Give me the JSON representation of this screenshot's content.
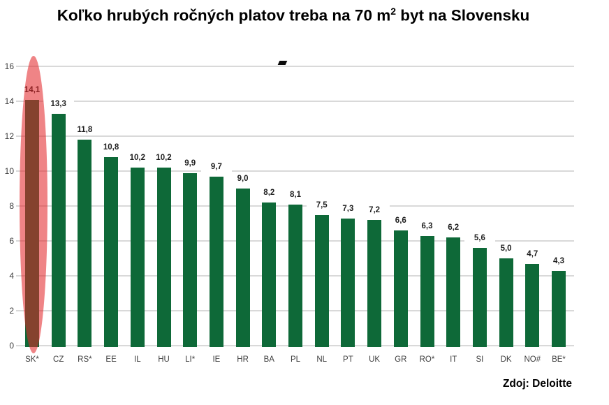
{
  "title": {
    "prefix": "Koľko hrubých ročných platov treba na 70 m",
    "sup": "2",
    "suffix": " byt na Slovensku"
  },
  "source": "Zdoj: Deloitte",
  "colors": {
    "bar": "#0e6938",
    "highlight_ellipse": "rgba(227,35,40,0.56)",
    "gridline": "#d9d9d9",
    "axis_text": "#3f3f3f",
    "value_text": "#1f1f1f"
  },
  "chart_data": {
    "type": "bar",
    "title": "Koľko hrubých ročných platov treba na 70 m2 byt na Slovensku",
    "categories": [
      "SK*",
      "CZ",
      "RS*",
      "EE",
      "IL",
      "HU",
      "LI*",
      "IE",
      "HR",
      "BA",
      "PL",
      "NL",
      "PT",
      "UK",
      "GR",
      "RO*",
      "IT",
      "SI",
      "DK",
      "NO#",
      "BE*"
    ],
    "values": [
      14.1,
      13.3,
      11.8,
      10.8,
      10.2,
      10.2,
      9.9,
      9.7,
      9.0,
      8.2,
      8.1,
      7.5,
      7.3,
      7.2,
      6.6,
      6.3,
      6.2,
      5.6,
      5.0,
      4.7,
      4.3
    ],
    "value_labels": [
      "14,1",
      "13,3",
      "11,8",
      "10,8",
      "10,2",
      "10,2",
      "9,9",
      "9,7",
      "9,0",
      "8,2",
      "8,1",
      "7,5",
      "7,3",
      "7,2",
      "6,6",
      "6,3",
      "6,2",
      "5,6",
      "5,0",
      "4,7",
      "4,3"
    ],
    "yticks": [
      0,
      2,
      4,
      6,
      8,
      10,
      12,
      14,
      16
    ],
    "ylim": [
      0,
      16
    ],
    "xlabel": "",
    "ylabel": "",
    "grid": true,
    "legend": false,
    "decimal_separator": ",",
    "highlighted_category": "SK*",
    "source": "Zdoj: Deloitte"
  }
}
